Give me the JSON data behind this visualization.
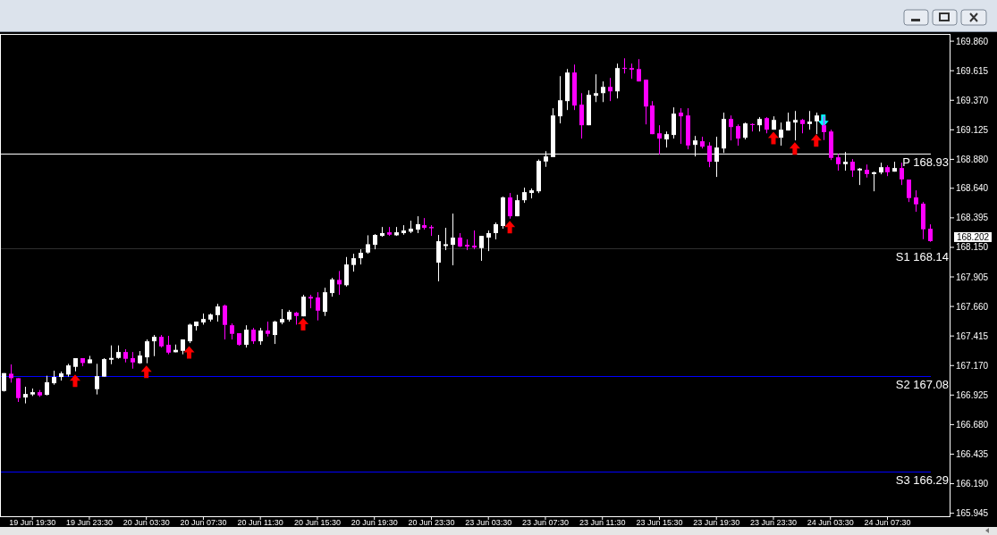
{
  "chart_data": {
    "type": "candlestick",
    "categories": [
      null,
      null,
      null,
      null,
      "19 Jun 19:30",
      null,
      null,
      null,
      null,
      null,
      null,
      null,
      "19 Jun 23:30",
      null,
      null,
      null,
      null,
      null,
      null,
      null,
      "20 Jun 03:30",
      null,
      null,
      null,
      null,
      null,
      null,
      null,
      "20 Jun 07:30",
      null,
      null,
      null,
      null,
      null,
      null,
      null,
      "20 Jun 11:30",
      null,
      null,
      null,
      null,
      null,
      null,
      null,
      "20 Jun 15:30",
      null,
      null,
      null,
      null,
      null,
      null,
      null,
      "20 Jun 19:30",
      null,
      null,
      null,
      null,
      null,
      null,
      null,
      "20 Jun 23:30",
      null,
      null,
      null,
      null,
      null,
      null,
      null,
      "23 Jun 03:30",
      null,
      null,
      null,
      null,
      null,
      null,
      null,
      "23 Jun 07:30",
      null,
      null,
      null,
      null,
      null,
      null,
      null,
      "23 Jun 11:30",
      null,
      null,
      null,
      null,
      null,
      null,
      null,
      "23 Jun 15:30",
      null,
      null,
      null,
      null,
      null,
      null,
      null,
      "23 Jun 19:30",
      null,
      null,
      null,
      null,
      null,
      null,
      null,
      "23 Jun 23:30",
      null,
      null,
      null,
      null,
      null,
      null,
      null,
      "24 Jun 03:30",
      null,
      null,
      null,
      null,
      null,
      null,
      null,
      "24 Jun 07:30",
      null,
      null,
      null,
      null,
      null,
      null
    ],
    "ylim": [
      165.92,
      169.92
    ],
    "yticks": [
      {
        "value": 169.86,
        "label": "169.860"
      },
      {
        "value": 169.615,
        "label": "169.615"
      },
      {
        "value": 169.37,
        "label": "169.370"
      },
      {
        "value": 169.125,
        "label": "169.125"
      },
      {
        "value": 168.88,
        "label": "168.880"
      },
      {
        "value": 168.64,
        "label": "168.640"
      },
      {
        "value": 168.395,
        "label": "168.395"
      },
      {
        "value": 168.15,
        "label": "168.150"
      },
      {
        "value": 167.905,
        "label": "167.905"
      },
      {
        "value": 167.66,
        "label": "167.660"
      },
      {
        "value": 167.415,
        "label": "167.415"
      },
      {
        "value": 167.17,
        "label": "167.170"
      },
      {
        "value": 166.925,
        "label": "166.925"
      },
      {
        "value": 166.68,
        "label": "166.680"
      },
      {
        "value": 166.435,
        "label": "166.435"
      },
      {
        "value": 166.19,
        "label": "166.190"
      },
      {
        "value": 165.945,
        "label": "165.945"
      }
    ],
    "ref_lines": [
      {
        "axis": "y",
        "value": 168.93,
        "label": "P 168.93",
        "color": "#ffffff"
      },
      {
        "axis": "y",
        "value": 168.14,
        "label": "S1 168.14",
        "color": "#303030"
      },
      {
        "axis": "y",
        "value": 167.08,
        "label": "S2 167.08",
        "color": "#0000ff"
      },
      {
        "axis": "y",
        "value": 166.29,
        "label": "S3 166.29",
        "color": "#0000ff"
      }
    ],
    "annotations": [
      "168.202"
    ],
    "series": [
      {
        "type": "candlestick",
        "ohlc": [
          [
            166.959,
            167.107,
            166.954,
            167.107
          ],
          [
            167.102,
            167.179,
            167.028,
            167.065
          ],
          [
            167.065,
            167.065,
            166.868,
            166.9
          ],
          [
            166.905,
            166.994,
            166.856,
            166.934
          ],
          [
            166.93,
            166.979,
            166.917,
            166.949
          ],
          [
            166.949,
            166.967,
            166.91,
            166.922
          ],
          [
            166.927,
            167.085,
            166.922,
            167.031
          ],
          [
            167.023,
            167.127,
            167.011,
            167.075
          ],
          [
            167.075,
            167.12,
            167.045,
            167.105
          ],
          [
            167.095,
            167.184,
            167.078,
            167.171
          ],
          [
            167.159,
            167.231,
            167.122,
            167.231
          ],
          [
            167.231,
            167.231,
            167.164,
            167.191
          ],
          [
            167.189,
            167.25,
            167.189,
            167.221
          ],
          [
            166.974,
            167.184,
            166.93,
            167.082
          ],
          [
            167.078,
            167.231,
            167.078,
            167.223
          ],
          [
            167.218,
            167.337,
            167.181,
            167.233
          ],
          [
            167.233,
            167.337,
            167.226,
            167.282
          ],
          [
            167.282,
            167.305,
            167.196,
            167.226
          ],
          [
            167.231,
            167.282,
            167.144,
            167.196
          ],
          [
            167.189,
            167.29,
            167.184,
            167.253
          ],
          [
            167.238,
            167.386,
            167.189,
            167.371
          ],
          [
            167.371,
            167.423,
            167.248,
            167.408
          ],
          [
            167.408,
            167.423,
            167.319,
            167.329
          ],
          [
            167.342,
            167.416,
            167.263,
            167.277
          ],
          [
            167.28,
            167.344,
            167.28,
            167.3
          ],
          [
            167.292,
            167.386,
            167.263,
            167.386
          ],
          [
            167.371,
            167.517,
            167.356,
            167.509
          ],
          [
            167.497,
            167.534,
            167.46,
            167.534
          ],
          [
            167.527,
            167.601,
            167.509,
            167.556
          ],
          [
            167.551,
            167.601,
            167.534,
            167.593
          ],
          [
            167.588,
            167.682,
            167.534,
            167.66
          ],
          [
            167.667,
            167.675,
            167.386,
            167.507
          ],
          [
            167.504,
            167.519,
            167.386,
            167.433
          ],
          [
            167.438,
            167.438,
            167.334,
            167.342
          ],
          [
            167.342,
            167.504,
            167.319,
            167.467
          ],
          [
            167.467,
            167.482,
            167.349,
            167.371
          ],
          [
            167.371,
            167.482,
            167.342,
            167.46
          ],
          [
            167.46,
            167.534,
            167.411,
            167.433
          ],
          [
            167.423,
            167.541,
            167.349,
            167.534
          ],
          [
            167.527,
            167.638,
            167.512,
            167.556
          ],
          [
            167.551,
            167.63,
            167.534,
            167.615
          ],
          [
            167.608,
            167.615,
            167.509,
            167.581
          ],
          [
            167.578,
            167.756,
            167.578,
            167.741
          ],
          [
            167.739,
            167.756,
            167.645,
            167.726
          ],
          [
            167.734,
            167.778,
            167.544,
            167.625
          ],
          [
            167.615,
            167.815,
            167.581,
            167.778
          ],
          [
            167.771,
            167.897,
            167.741,
            167.884
          ],
          [
            167.88,
            167.954,
            167.756,
            167.843
          ],
          [
            167.836,
            168.07,
            167.825,
            168.008
          ],
          [
            168.004,
            168.097,
            167.949,
            168.06
          ],
          [
            168.06,
            168.134,
            168.008,
            168.105
          ],
          [
            168.107,
            168.25,
            168.097,
            168.176
          ],
          [
            168.171,
            168.26,
            168.134,
            168.253
          ],
          [
            168.245,
            168.319,
            168.238,
            168.268
          ],
          [
            168.275,
            168.319,
            168.245,
            168.255
          ],
          [
            168.25,
            168.319,
            168.245,
            168.275
          ],
          [
            168.268,
            168.334,
            168.255,
            168.29
          ],
          [
            168.28,
            168.371,
            168.268,
            168.305
          ],
          [
            168.297,
            168.408,
            168.268,
            168.342
          ],
          [
            168.334,
            168.393,
            168.297,
            168.312
          ],
          [
            168.319,
            168.334,
            168.245,
            168.309
          ],
          [
            168.023,
            168.253,
            167.868,
            168.201
          ],
          [
            168.161,
            168.312,
            168.127,
            168.176
          ],
          [
            168.171,
            168.43,
            168.001,
            168.231
          ],
          [
            168.231,
            168.268,
            168.152,
            168.157
          ],
          [
            168.171,
            168.216,
            168.127,
            168.157
          ],
          [
            168.164,
            168.29,
            168.134,
            168.149
          ],
          [
            168.144,
            168.245,
            168.038,
            168.245
          ],
          [
            168.231,
            168.29,
            168.119,
            168.268
          ],
          [
            168.268,
            168.356,
            168.216,
            168.342
          ],
          [
            168.327,
            168.571,
            168.305,
            168.564
          ],
          [
            168.564,
            168.601,
            168.388,
            168.408
          ],
          [
            168.408,
            168.586,
            168.408,
            168.541
          ],
          [
            168.541,
            168.645,
            168.519,
            168.608
          ],
          [
            168.601,
            168.638,
            168.556,
            168.623
          ],
          [
            168.615,
            168.879,
            168.6,
            168.867
          ],
          [
            168.862,
            168.948,
            168.818,
            168.904
          ],
          [
            168.899,
            169.304,
            168.899,
            169.244
          ],
          [
            169.237,
            169.57,
            169.178,
            169.37
          ],
          [
            169.363,
            169.629,
            169.289,
            169.6
          ],
          [
            169.6,
            169.666,
            169.289,
            169.326
          ],
          [
            169.333,
            169.429,
            169.052,
            169.163
          ],
          [
            169.163,
            169.452,
            169.163,
            169.415
          ],
          [
            169.407,
            169.585,
            169.355,
            169.429
          ],
          [
            169.429,
            169.526,
            169.355,
            169.481
          ],
          [
            169.481,
            169.555,
            169.363,
            169.444
          ],
          [
            169.444,
            169.674,
            169.385,
            169.637
          ],
          [
            169.639,
            169.718,
            169.592,
            169.632
          ],
          [
            169.637,
            169.674,
            169.548,
            169.624
          ],
          [
            169.629,
            169.711,
            169.526,
            169.526
          ],
          [
            169.54,
            169.54,
            169.17,
            169.318
          ],
          [
            169.326,
            169.363,
            169.089,
            169.089
          ],
          [
            169.096,
            169.163,
            168.919,
            169.052
          ],
          [
            169.045,
            169.111,
            168.978,
            169.089
          ],
          [
            169.082,
            169.311,
            169.052,
            169.259
          ],
          [
            169.267,
            169.304,
            169.008,
            169.237
          ],
          [
            169.244,
            169.304,
            168.963,
            168.995
          ],
          [
            169.0,
            169.074,
            168.904,
            169.037
          ],
          [
            169.03,
            169.067,
            168.97,
            168.985
          ],
          [
            168.993,
            169.022,
            168.815,
            168.86
          ],
          [
            168.86,
            169.067,
            168.734,
            168.978
          ],
          [
            168.97,
            169.267,
            168.933,
            169.215
          ],
          [
            169.215,
            169.244,
            169.037,
            169.148
          ],
          [
            169.156,
            169.17,
            168.993,
            169.052
          ],
          [
            169.059,
            169.185,
            169.045,
            169.178
          ],
          [
            169.173,
            169.178,
            169.111,
            169.165
          ],
          [
            169.163,
            169.23,
            169.111,
            169.215
          ],
          [
            169.222,
            169.23,
            169.096,
            169.126
          ],
          [
            169.126,
            169.237,
            169.126,
            169.207
          ],
          [
            169.059,
            169.185,
            168.993,
            169.126
          ],
          [
            169.119,
            169.267,
            169.119,
            169.193
          ],
          [
            169.185,
            169.281,
            169.037,
            169.207
          ],
          [
            169.207,
            169.215,
            169.096,
            169.173
          ],
          [
            169.173,
            169.281,
            169.126,
            169.193
          ],
          [
            169.195,
            169.267,
            169.089,
            169.244
          ],
          [
            169.163,
            169.237,
            169.04,
            169.106
          ],
          [
            169.111,
            169.126,
            168.874,
            168.892
          ],
          [
            168.897,
            168.926,
            168.786,
            168.84
          ],
          [
            168.84,
            168.941,
            168.786,
            168.86
          ],
          [
            168.86,
            168.882,
            168.734,
            168.788
          ],
          [
            168.788,
            168.808,
            168.667,
            168.803
          ],
          [
            168.793,
            168.837,
            168.729,
            168.758
          ],
          [
            168.758,
            168.778,
            168.615,
            168.773
          ],
          [
            168.771,
            168.852,
            168.756,
            168.815
          ],
          [
            168.815,
            168.83,
            168.741,
            168.773
          ],
          [
            168.778,
            168.86,
            168.778,
            168.808
          ],
          [
            168.808,
            168.852,
            168.667,
            168.714
          ],
          [
            168.712,
            168.712,
            168.526,
            168.559
          ],
          [
            168.564,
            168.623,
            168.445,
            168.507
          ],
          [
            168.512,
            168.526,
            168.218,
            168.3
          ],
          [
            168.304,
            168.341,
            168.196,
            168.202
          ]
        ],
        "colors": [
          "#ffffff",
          "#ff00ff",
          "#ff00ff",
          "#ffffff",
          "#ffffff",
          "#ff00ff",
          "#ffffff",
          "#ffffff",
          "#ffffff",
          "#ffffff",
          "#ffffff",
          "#ff00ff",
          "#ffffff",
          "#ffffff",
          "#ffffff",
          "#ffffff",
          "#ffffff",
          "#ff00ff",
          "#ff00ff",
          "#ffffff",
          "#ffffff",
          "#ffffff",
          "#ff00ff",
          "#ff00ff",
          "#ffffff",
          "#ffffff",
          "#ffffff",
          "#ffffff",
          "#ffffff",
          "#ffffff",
          "#ffffff",
          "#ff00ff",
          "#ff00ff",
          "#ff00ff",
          "#ffffff",
          "#ff00ff",
          "#ffffff",
          "#ff00ff",
          "#ffffff",
          "#ffffff",
          "#ffffff",
          "#ff00ff",
          "#ffffff",
          "#ff00ff",
          "#ff00ff",
          "#ffffff",
          "#ffffff",
          "#ff00ff",
          "#ffffff",
          "#ffffff",
          "#ffffff",
          "#ffffff",
          "#ffffff",
          "#ffffff",
          "#ff00ff",
          "#ffffff",
          "#ffffff",
          "#ffffff",
          "#ffffff",
          "#ff00ff",
          "#ff00ff",
          "#ffffff",
          "#ffffff",
          "#ffffff",
          "#ff00ff",
          "#ff00ff",
          "#ff00ff",
          "#ffffff",
          "#ffffff",
          "#ffffff",
          "#ffffff",
          "#ff00ff",
          "#ffffff",
          "#ffffff",
          "#ffffff",
          "#ffffff",
          "#ffffff",
          "#ffffff",
          "#ffffff",
          "#ffffff",
          "#ff00ff",
          "#ff00ff",
          "#ffffff",
          "#ffffff",
          "#ffffff",
          "#ff00ff",
          "#ffffff",
          "#ff00ff",
          "#ff00ff",
          "#ff00ff",
          "#ff00ff",
          "#ff00ff",
          "#ff00ff",
          "#ffffff",
          "#ffffff",
          "#ff00ff",
          "#ff00ff",
          "#ffffff",
          "#ff00ff",
          "#ff00ff",
          "#ffffff",
          "#ffffff",
          "#ff00ff",
          "#ff00ff",
          "#ffffff",
          "#ff00ff",
          "#ffffff",
          "#ff00ff",
          "#ffffff",
          "#ffffff",
          "#ffffff",
          "#ffffff",
          "#ff00ff",
          "#ffffff",
          "#ffffff",
          "#ff00ff",
          "#ff00ff",
          "#ff00ff",
          "#ffffff",
          "#ff00ff",
          "#ffffff",
          "#ff00ff",
          "#ffffff",
          "#ffffff",
          "#ff00ff",
          "#ffffff",
          "#ff00ff",
          "#ff00ff",
          "#ff00ff",
          "#ff00ff",
          "#ff00ff"
        ]
      },
      {
        "type": "scatter",
        "color": "#ff0000",
        "marker": "triangle",
        "values": [
          null,
          null,
          null,
          null,
          null,
          null,
          null,
          null,
          null,
          null,
          167.044,
          null,
          null,
          null,
          null,
          null,
          null,
          null,
          null,
          null,
          167.118,
          null,
          null,
          null,
          null,
          null,
          167.28,
          null,
          null,
          null,
          null,
          null,
          null,
          null,
          null,
          null,
          null,
          null,
          null,
          null,
          null,
          null,
          167.512,
          null,
          null,
          null,
          null,
          null,
          null,
          null,
          null,
          null,
          null,
          null,
          null,
          null,
          null,
          null,
          null,
          null,
          null,
          null,
          null,
          null,
          null,
          null,
          null,
          null,
          null,
          null,
          null,
          168.319,
          null,
          null,
          null,
          null,
          null,
          null,
          null,
          null,
          null,
          null,
          null,
          null,
          null,
          null,
          null,
          null,
          null,
          null,
          null,
          null,
          null,
          null,
          null,
          null,
          null,
          null,
          null,
          null,
          null,
          null,
          null,
          null,
          null,
          null,
          null,
          null,
          169.057,
          null,
          null,
          168.97,
          null,
          null,
          169.036,
          null,
          null,
          null,
          null,
          null,
          null,
          null,
          null,
          null,
          null,
          null,
          null,
          null,
          null,
          null,
          null
        ]
      },
      {
        "type": "scatter",
        "color": "#00ffff",
        "marker": "triangle",
        "values": [
          null,
          null,
          null,
          null,
          null,
          null,
          null,
          null,
          null,
          null,
          null,
          null,
          null,
          null,
          null,
          null,
          null,
          null,
          null,
          null,
          null,
          null,
          null,
          null,
          null,
          null,
          null,
          null,
          null,
          null,
          null,
          null,
          null,
          null,
          null,
          null,
          null,
          null,
          null,
          null,
          null,
          null,
          null,
          null,
          null,
          null,
          null,
          null,
          null,
          null,
          null,
          null,
          null,
          null,
          null,
          null,
          null,
          null,
          null,
          null,
          null,
          null,
          null,
          null,
          null,
          null,
          null,
          null,
          null,
          null,
          null,
          null,
          null,
          null,
          null,
          null,
          null,
          null,
          null,
          null,
          null,
          null,
          null,
          null,
          null,
          null,
          null,
          null,
          null,
          null,
          null,
          null,
          null,
          null,
          null,
          null,
          null,
          null,
          null,
          null,
          null,
          null,
          null,
          null,
          null,
          null,
          null,
          null,
          null,
          null,
          null,
          null,
          null,
          null,
          null,
          169.2,
          null,
          null,
          null,
          null,
          null,
          null,
          null,
          null,
          null,
          null,
          null,
          null,
          null,
          null,
          null
        ]
      }
    ]
  }
}
